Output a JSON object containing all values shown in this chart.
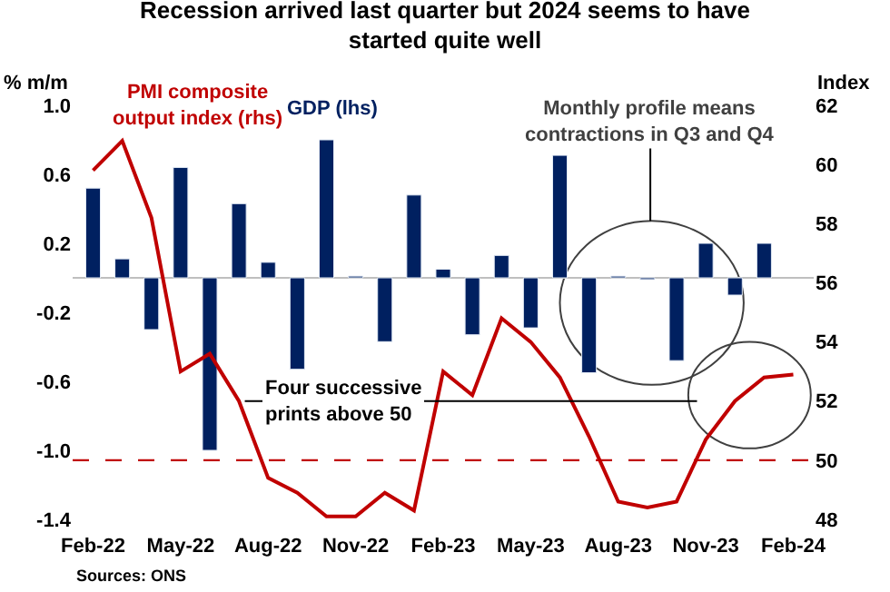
{
  "chart_data": {
    "type": "bar",
    "title": "Recession arrived last quarter but 2024 seems to have started quite well",
    "categories": [
      "Feb-22",
      null,
      null,
      "May-22",
      null,
      null,
      "Aug-22",
      null,
      null,
      "Nov-22",
      null,
      null,
      "Feb-23",
      null,
      null,
      "May-23",
      null,
      null,
      "Aug-23",
      null,
      null,
      "Nov-23",
      null,
      null,
      "Feb-24"
    ],
    "series": [
      {
        "name": "GDP (lhs)",
        "color": "#002060",
        "values": [
          0.52,
          0.11,
          -0.3,
          0.64,
          -1.0,
          0.43,
          0.09,
          -0.53,
          0.8,
          0.01,
          -0.37,
          0.48,
          0.05,
          -0.33,
          0.13,
          -0.29,
          0.71,
          -0.55,
          0.01,
          -0.01,
          -0.48,
          0.2,
          -0.1,
          0.2,
          null
        ]
      },
      {
        "name": "PMI composite output index (rhs)",
        "type": "line",
        "axis": "y2",
        "color": "#c00000",
        "values": [
          59.8,
          60.8,
          58.2,
          53.0,
          53.6,
          52.0,
          49.4,
          48.9,
          48.1,
          48.1,
          48.9,
          48.3,
          53.0,
          52.2,
          54.8,
          54.0,
          52.8,
          50.8,
          48.6,
          48.4,
          48.6,
          50.7,
          52.0,
          52.8,
          52.9
        ]
      }
    ],
    "ylabel": "% m/m",
    "y2label": "Index",
    "ylim": [
      -1.4,
      1.0
    ],
    "yticks": [
      -1.4,
      {
        "value": -1.0,
        "label": "-1.0"
      },
      -0.6,
      -0.2,
      0.2,
      0.6,
      {
        "value": 1.0,
        "label": "1.0"
      }
    ],
    "y2lim": [
      48,
      62
    ],
    "y2ticks": [
      48,
      50,
      52,
      54,
      56,
      58,
      60,
      62
    ],
    "ref_lines": [
      {
        "axis": "y2",
        "value": 50,
        "color": "#c00000",
        "line_style": "dashed"
      }
    ],
    "annotations": [
      "Monthly profile means contractions in Q3 and Q4",
      "Four successive prints above 50",
      "Sources: ONS"
    ],
    "grid": false
  }
}
